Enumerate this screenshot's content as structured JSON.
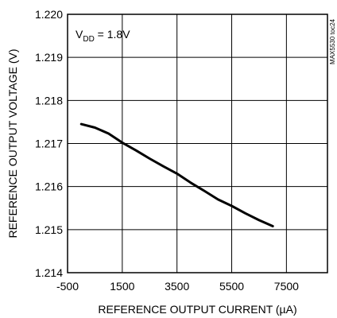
{
  "chart_data": {
    "type": "line",
    "title": "",
    "xlabel": "REFERENCE OUTPUT CURRENT (µA)",
    "ylabel": "REFERENCE OUTPUT VOLTAGE (V)",
    "xlim": [
      -500,
      9000
    ],
    "ylim": [
      1.214,
      1.22
    ],
    "x_ticks": [
      -500,
      1500,
      3500,
      5500,
      7500
    ],
    "x_tick_labels": [
      "-500",
      "1500",
      "3500",
      "5500",
      "7500"
    ],
    "y_ticks": [
      1.214,
      1.215,
      1.216,
      1.217,
      1.218,
      1.219,
      1.22
    ],
    "y_tick_labels": [
      "1.214",
      "1.215",
      "1.216",
      "1.217",
      "1.218",
      "1.219",
      "1.220"
    ],
    "grid": true,
    "annotation": {
      "main": "V",
      "subscript": "DD",
      "suffix": " = 1.8V"
    },
    "side_label": "MAX5530 toc24",
    "series": [
      {
        "x": [
          0,
          500,
          1000,
          1500,
          2000,
          2500,
          3000,
          3500,
          4000,
          4500,
          5000,
          5500,
          6000,
          6500,
          7000
        ],
        "values": [
          1.21745,
          1.21737,
          1.21723,
          1.21702,
          1.21684,
          1.21665,
          1.21647,
          1.2163,
          1.21609,
          1.2159,
          1.2157,
          1.21555,
          1.21538,
          1.21522,
          1.21508
        ]
      }
    ]
  }
}
